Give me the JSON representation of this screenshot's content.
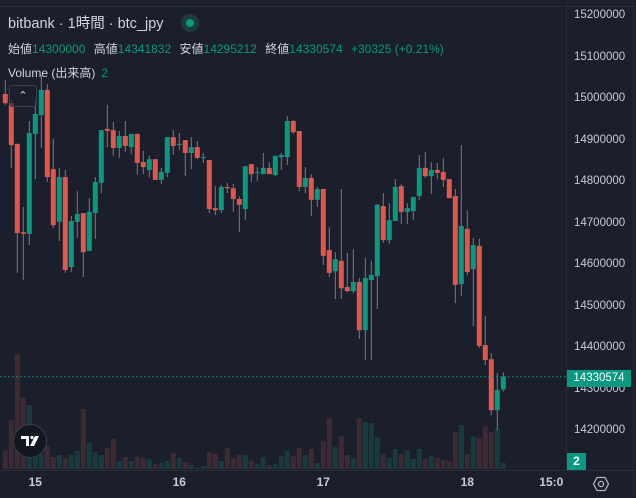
{
  "header": {
    "title": "bitbank · 1時間 · btc_jpy",
    "ohlc": [
      {
        "label": "始値",
        "value": "14300000"
      },
      {
        "label": "高値",
        "value": "14341832"
      },
      {
        "label": "安値",
        "value": "14295212"
      },
      {
        "label": "終値",
        "value": "14330574"
      }
    ],
    "change": "+30325 (+0.21%)",
    "volume_label": "Volume (出来高)",
    "volume_value": "2"
  },
  "price_axis": [
    "15200000",
    "15100000",
    "15000000",
    "14900000",
    "14800000",
    "14700000",
    "14600000",
    "14500000",
    "14400000",
    "14300000",
    "14200000"
  ],
  "last_price_label": "14330574",
  "volume_axis_label": "2",
  "time_axis": [
    {
      "label": "15",
      "index": 5
    },
    {
      "label": "16",
      "index": 29
    },
    {
      "label": "17",
      "index": 53
    },
    {
      "label": "18",
      "index": 77
    },
    {
      "label": "15:0",
      "index": 91
    }
  ],
  "colors": {
    "up": "#089981",
    "down": "#e2564b",
    "vol_up": "#163c3d",
    "vol_down": "#3d2a32",
    "background": "#1b1f2b"
  },
  "icons": {
    "collapse": "chevron-up-icon",
    "logo": "tradingview-logo-icon",
    "settings": "settings-gear-icon"
  },
  "chart_data": {
    "type": "candlestick",
    "symbol": "btc_jpy",
    "interval": "1h",
    "ylim": [
      14150000,
      15230000
    ],
    "last_price": 14330574,
    "candles": [
      [
        15012,
        14990,
        15046,
        14986
      ],
      [
        14990,
        14889,
        14998,
        14834
      ],
      [
        14892,
        14677,
        14892,
        14581
      ],
      [
        14679,
        14675,
        14740,
        14564
      ],
      [
        14675,
        14918,
        14947,
        14648
      ],
      [
        14916,
        14964,
        14998,
        14807
      ],
      [
        14961,
        15022,
        15058,
        14882
      ],
      [
        15022,
        14812,
        15036,
        14800
      ],
      [
        14831,
        14696,
        14904,
        14689
      ],
      [
        14704,
        14812,
        14834,
        14658
      ],
      [
        14812,
        14588,
        14829,
        14581
      ],
      [
        14595,
        14706,
        14718,
        14583
      ],
      [
        14704,
        14723,
        14778,
        14665
      ],
      [
        14725,
        14631,
        14725,
        14571
      ],
      [
        14634,
        14728,
        14761,
        14634
      ],
      [
        14725,
        14800,
        14812,
        14663
      ],
      [
        14798,
        14925,
        14925,
        14773
      ],
      [
        14928,
        14923,
        14986,
        14884
      ],
      [
        14925,
        14882,
        14945,
        14863
      ],
      [
        14882,
        14911,
        14923,
        14858
      ],
      [
        14911,
        14887,
        14947,
        14872
      ],
      [
        14884,
        14916,
        14916,
        14867
      ],
      [
        14916,
        14846,
        14916,
        14817
      ],
      [
        14848,
        14836,
        14875,
        14819
      ],
      [
        14829,
        14855,
        14863,
        14810
      ],
      [
        14855,
        14805,
        14855,
        14805
      ],
      [
        14805,
        14824,
        14834,
        14795
      ],
      [
        14822,
        14908,
        14908,
        14812
      ],
      [
        14908,
        14887,
        14925,
        14865
      ],
      [
        14889,
        14892,
        14918,
        14877
      ],
      [
        14901,
        14870,
        14901,
        14814
      ],
      [
        14870,
        14884,
        14908,
        14831
      ],
      [
        14884,
        14858,
        14899,
        14855
      ],
      [
        14858,
        14860,
        14870,
        14846
      ],
      [
        14853,
        14735,
        14853,
        14725
      ],
      [
        14737,
        14732,
        14790,
        14720
      ],
      [
        14732,
        14788,
        14793,
        14725
      ],
      [
        14788,
        14785,
        14798,
        14773
      ],
      [
        14785,
        14759,
        14795,
        14728
      ],
      [
        14759,
        14745,
        14766,
        14679
      ],
      [
        14735,
        14838,
        14838,
        14708
      ],
      [
        14843,
        14819,
        14843,
        14800
      ],
      [
        14822,
        14824,
        14836,
        14802
      ],
      [
        14819,
        14834,
        14870,
        14819
      ],
      [
        14834,
        14819,
        14848,
        14819
      ],
      [
        14817,
        14863,
        14863,
        14814
      ],
      [
        14860,
        14865,
        14870,
        14829
      ],
      [
        14860,
        14947,
        14959,
        14841
      ],
      [
        14947,
        14920,
        14949,
        14916
      ],
      [
        14923,
        14788,
        14923,
        14778
      ],
      [
        14788,
        14810,
        14836,
        14773
      ],
      [
        14810,
        14757,
        14819,
        14718
      ],
      [
        14757,
        14783,
        14788,
        14740
      ],
      [
        14783,
        14622,
        14783,
        14600
      ],
      [
        14636,
        14581,
        14691,
        14571
      ],
      [
        14585,
        14614,
        14631,
        14518
      ],
      [
        14610,
        14544,
        14783,
        14518
      ],
      [
        14547,
        14537,
        14629,
        14535
      ],
      [
        14537,
        14559,
        14638,
        14532
      ],
      [
        14559,
        14443,
        14569,
        14422
      ],
      [
        14443,
        14569,
        14617,
        14371
      ],
      [
        14564,
        14576,
        14610,
        14371
      ],
      [
        14573,
        14745,
        14747,
        14494
      ],
      [
        14742,
        14660,
        14773,
        14653
      ],
      [
        14660,
        14708,
        14749,
        14651
      ],
      [
        14706,
        14788,
        14807,
        14706
      ],
      [
        14790,
        14728,
        14795,
        14699
      ],
      [
        14728,
        14737,
        14749,
        14699
      ],
      [
        14730,
        14764,
        14764,
        14708
      ],
      [
        14766,
        14834,
        14865,
        14757
      ],
      [
        14834,
        14814,
        14872,
        14810
      ],
      [
        14814,
        14829,
        14848,
        14771
      ],
      [
        14829,
        14822,
        14846,
        14807
      ],
      [
        14824,
        14805,
        14858,
        14788
      ],
      [
        14807,
        14761,
        14807,
        14761
      ],
      [
        14766,
        14552,
        14783,
        14508
      ],
      [
        14554,
        14694,
        14889,
        14525
      ],
      [
        14687,
        14583,
        14732,
        14576
      ],
      [
        14590,
        14648,
        14665,
        14453
      ],
      [
        14646,
        14405,
        14663,
        14400
      ],
      [
        14407,
        14371,
        14477,
        14359
      ],
      [
        14373,
        14250,
        14388,
        14238
      ],
      [
        14250,
        14299,
        14340,
        14202
      ],
      [
        14300,
        14331,
        14342,
        14295
      ]
    ],
    "candle_format": "[open, close, high, low] in thousand JPY",
    "volumes": [
      6.3,
      16.3,
      38.3,
      23.8,
      21.3,
      4.7,
      5.1,
      7.7,
      4,
      4.7,
      3.7,
      4.7,
      6,
      20,
      8.7,
      5.7,
      4.7,
      7,
      10,
      2.7,
      4,
      2.7,
      4,
      3.7,
      3.3,
      1.7,
      2,
      2.7,
      5.3,
      3.7,
      2.3,
      1.3,
      0.3,
      1,
      5.7,
      5,
      2.7,
      7,
      3.7,
      4.7,
      4.7,
      2.7,
      1.7,
      4,
      1.3,
      1.7,
      4.3,
      6,
      4.3,
      7,
      4.7,
      6.7,
      2,
      9.3,
      17,
      7.3,
      11,
      4.7,
      3.7,
      17,
      15.7,
      15.3,
      10.7,
      5,
      3.7,
      6.7,
      5,
      6.3,
      3.3,
      6.7,
      3.3,
      4.3,
      3.7,
      3,
      2.7,
      12.3,
      14.7,
      5,
      10.7,
      10.3,
      14.3,
      12.3,
      13.3,
      2
    ]
  }
}
